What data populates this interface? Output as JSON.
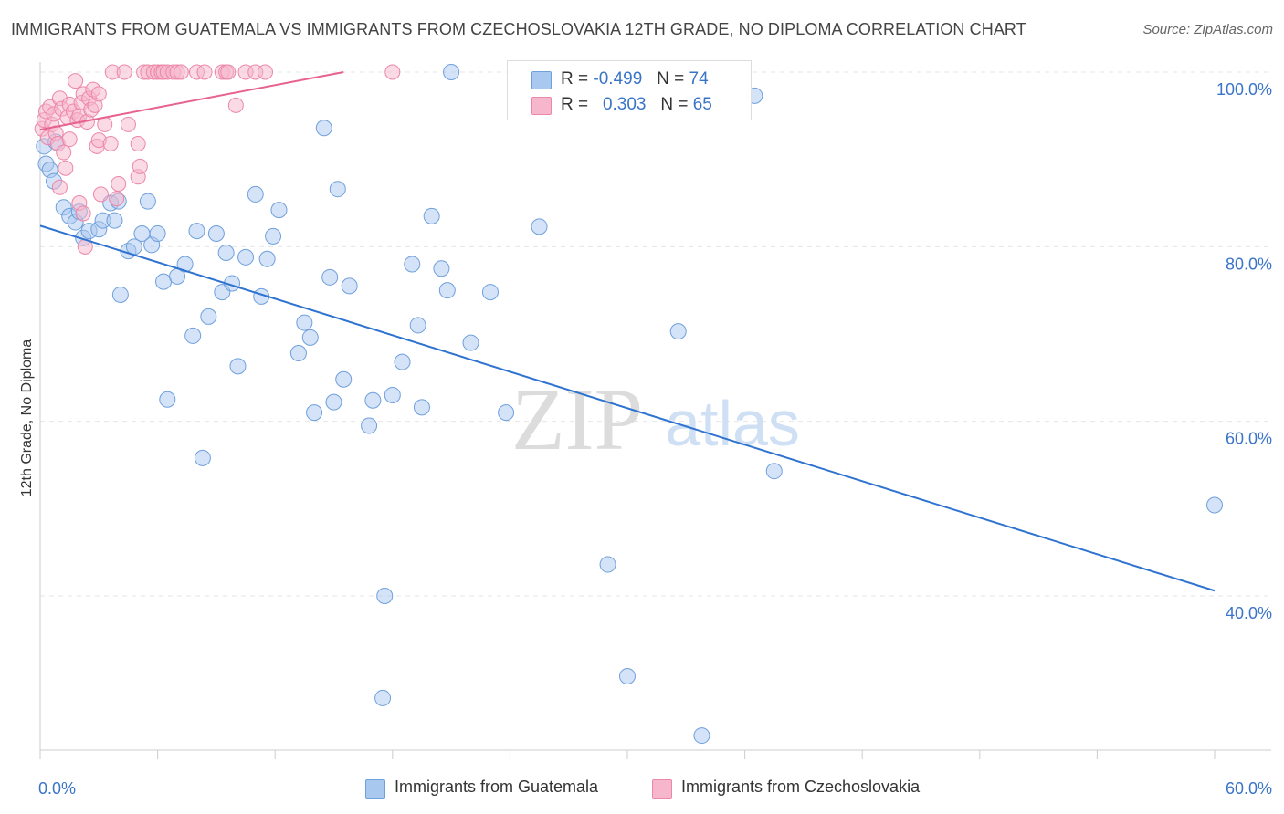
{
  "title": "IMMIGRANTS FROM GUATEMALA VS IMMIGRANTS FROM CZECHOSLOVAKIA 12TH GRADE, NO DIPLOMA CORRELATION CHART",
  "source": "Source: ZipAtlas.com",
  "watermark": {
    "zip": "ZIP",
    "atlas": "atlas"
  },
  "legend": {
    "rows": [
      {
        "r_label": "R =",
        "r_value": "-0.499",
        "n_label": "N =",
        "n_value": "74"
      },
      {
        "r_label": "R =",
        "r_value": "0.303",
        "n_label": "N =",
        "n_value": "65"
      }
    ]
  },
  "colors": {
    "guatemala_fill": "#a9c8f0",
    "guatemala_stroke": "#6fa0dc",
    "guatemala_line": "#2f73d0",
    "czech_fill": "#f6b6cb",
    "czech_stroke": "#ec87a7",
    "czech_line": "#e8628f",
    "axis_label": "#3a74c8"
  },
  "chart_data": {
    "type": "scatter",
    "title": "IMMIGRANTS FROM GUATEMALA VS IMMIGRANTS FROM CZECHOSLOVAKIA 12TH GRADE, NO DIPLOMA CORRELATION CHART",
    "xlabel": "",
    "ylabel": "12th Grade, No Diploma",
    "xlim": [
      0,
      60
    ],
    "ylim": [
      20,
      102
    ],
    "x_tick_labels": [
      "0.0%",
      "60.0%"
    ],
    "y_tick_labels": [
      "100.0%",
      "80.0%",
      "60.0%",
      "40.0%"
    ],
    "y_ticks": [
      100,
      80,
      60,
      40
    ],
    "grid": true,
    "legend_position": "top-center",
    "series": [
      {
        "name": "Immigrants from Guatemala",
        "r": -0.499,
        "n": 74,
        "trend": {
          "x": [
            0,
            60
          ],
          "y": [
            82.4,
            40.6
          ]
        },
        "points": [
          [
            0.2,
            91.5
          ],
          [
            0.3,
            89.5
          ],
          [
            0.5,
            88.8
          ],
          [
            0.7,
            87.5
          ],
          [
            0.8,
            92.0
          ],
          [
            1.2,
            84.5
          ],
          [
            1.5,
            83.5
          ],
          [
            1.8,
            82.8
          ],
          [
            2.0,
            84.0
          ],
          [
            2.2,
            81.0
          ],
          [
            2.5,
            81.8
          ],
          [
            3.0,
            82.0
          ],
          [
            3.2,
            83.0
          ],
          [
            3.6,
            85.0
          ],
          [
            3.8,
            83.0
          ],
          [
            4.0,
            85.2
          ],
          [
            4.1,
            74.5
          ],
          [
            4.5,
            79.5
          ],
          [
            4.8,
            80.0
          ],
          [
            5.2,
            81.5
          ],
          [
            5.5,
            85.2
          ],
          [
            5.7,
            80.2
          ],
          [
            6.0,
            81.5
          ],
          [
            6.3,
            76.0
          ],
          [
            6.5,
            62.5
          ],
          [
            7.0,
            76.6
          ],
          [
            7.4,
            78.0
          ],
          [
            7.8,
            69.8
          ],
          [
            8.0,
            81.8
          ],
          [
            8.3,
            55.8
          ],
          [
            8.6,
            72.0
          ],
          [
            9.0,
            81.5
          ],
          [
            9.3,
            74.8
          ],
          [
            9.5,
            79.3
          ],
          [
            9.8,
            75.8
          ],
          [
            10.1,
            66.3
          ],
          [
            10.5,
            78.8
          ],
          [
            11.0,
            86.0
          ],
          [
            11.3,
            74.3
          ],
          [
            11.6,
            78.6
          ],
          [
            11.9,
            81.2
          ],
          [
            12.2,
            84.2
          ],
          [
            13.2,
            67.8
          ],
          [
            13.5,
            71.3
          ],
          [
            13.8,
            69.6
          ],
          [
            14.0,
            61.0
          ],
          [
            14.5,
            93.6
          ],
          [
            14.8,
            76.5
          ],
          [
            15.0,
            62.2
          ],
          [
            15.2,
            86.6
          ],
          [
            15.5,
            64.8
          ],
          [
            15.8,
            75.5
          ],
          [
            16.8,
            59.5
          ],
          [
            17.0,
            62.4
          ],
          [
            17.5,
            28.3
          ],
          [
            17.6,
            40.0
          ],
          [
            18.0,
            63.0
          ],
          [
            18.5,
            66.8
          ],
          [
            19.0,
            78.0
          ],
          [
            19.3,
            71.0
          ],
          [
            19.5,
            61.6
          ],
          [
            20.0,
            83.5
          ],
          [
            20.5,
            77.5
          ],
          [
            20.8,
            75.0
          ],
          [
            21.0,
            100.0
          ],
          [
            22.0,
            69.0
          ],
          [
            23.0,
            74.8
          ],
          [
            23.8,
            61.0
          ],
          [
            25.5,
            82.3
          ],
          [
            29.0,
            43.6
          ],
          [
            30.0,
            30.8
          ],
          [
            32.6,
            70.3
          ],
          [
            33.8,
            24.0
          ],
          [
            36.5,
            97.3
          ],
          [
            37.5,
            54.3
          ],
          [
            60.0,
            50.4
          ]
        ]
      },
      {
        "name": "Immigrants from Czechoslovakia",
        "r": 0.303,
        "n": 65,
        "trend": {
          "x": [
            0,
            15.5
          ],
          "y": [
            93.4,
            100.0
          ]
        },
        "points": [
          [
            0.1,
            93.5
          ],
          [
            0.2,
            94.5
          ],
          [
            0.3,
            95.5
          ],
          [
            0.4,
            92.5
          ],
          [
            0.5,
            96.0
          ],
          [
            0.6,
            94.0
          ],
          [
            0.7,
            95.2
          ],
          [
            0.8,
            93.0
          ],
          [
            0.9,
            91.8
          ],
          [
            1.0,
            97.0
          ],
          [
            1.0,
            86.8
          ],
          [
            1.1,
            95.8
          ],
          [
            1.2,
            90.8
          ],
          [
            1.3,
            89.0
          ],
          [
            1.4,
            94.8
          ],
          [
            1.5,
            96.3
          ],
          [
            1.5,
            92.3
          ],
          [
            1.7,
            95.5
          ],
          [
            1.8,
            99.0
          ],
          [
            1.9,
            94.5
          ],
          [
            2.0,
            95.0
          ],
          [
            2.0,
            85.0
          ],
          [
            2.1,
            96.5
          ],
          [
            2.2,
            97.5
          ],
          [
            2.2,
            83.8
          ],
          [
            2.3,
            80.0
          ],
          [
            2.4,
            94.3
          ],
          [
            2.5,
            97.0
          ],
          [
            2.6,
            95.7
          ],
          [
            2.7,
            98.0
          ],
          [
            2.8,
            96.2
          ],
          [
            2.9,
            91.5
          ],
          [
            3.0,
            92.2
          ],
          [
            3.0,
            97.5
          ],
          [
            3.1,
            86.0
          ],
          [
            3.3,
            94.0
          ],
          [
            3.6,
            91.8
          ],
          [
            3.7,
            100.0
          ],
          [
            3.9,
            85.5
          ],
          [
            4.0,
            87.2
          ],
          [
            4.3,
            100.0
          ],
          [
            4.5,
            94.0
          ],
          [
            5.0,
            91.8
          ],
          [
            5.0,
            88.0
          ],
          [
            5.1,
            89.2
          ],
          [
            5.3,
            100.0
          ],
          [
            5.5,
            100.0
          ],
          [
            5.8,
            100.0
          ],
          [
            6.0,
            100.0
          ],
          [
            6.2,
            100.0
          ],
          [
            6.3,
            100.0
          ],
          [
            6.5,
            100.0
          ],
          [
            6.8,
            100.0
          ],
          [
            7.0,
            100.0
          ],
          [
            7.2,
            100.0
          ],
          [
            8.0,
            100.0
          ],
          [
            8.4,
            100.0
          ],
          [
            9.3,
            100.0
          ],
          [
            9.5,
            100.0
          ],
          [
            9.6,
            100.0
          ],
          [
            10.0,
            96.2
          ],
          [
            10.5,
            100.0
          ],
          [
            11.0,
            100.0
          ],
          [
            11.5,
            100.0
          ],
          [
            18.0,
            100.0
          ]
        ]
      }
    ]
  },
  "bottom_legend": {
    "items": [
      {
        "label": "Immigrants from Guatemala"
      },
      {
        "label": "Immigrants from Czechoslovakia"
      }
    ]
  }
}
